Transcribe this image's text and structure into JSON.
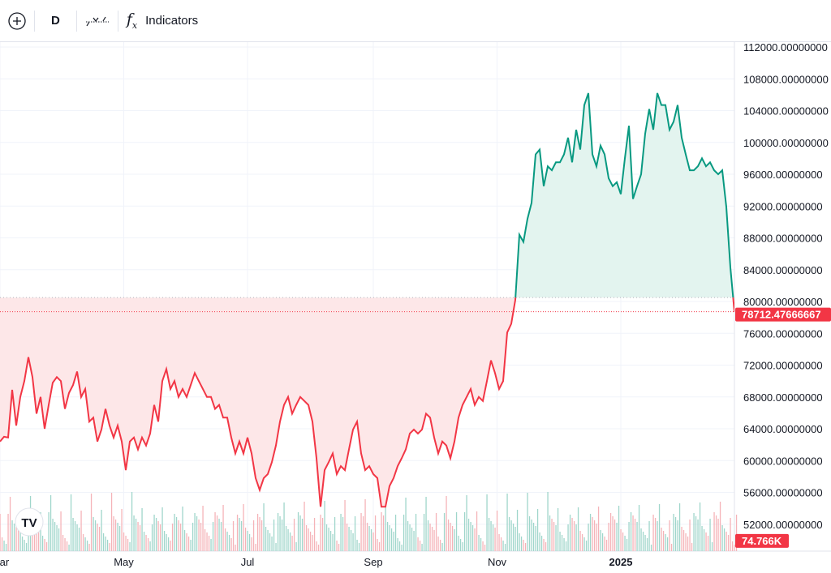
{
  "toolbar": {
    "add_icon": "plus-circle-icon",
    "interval": "D",
    "compare_icon": "chart-type-icon",
    "indicators_icon": "fx-icon",
    "indicators_label": "Indicators"
  },
  "colors": {
    "up": "#089981",
    "down": "#f23645",
    "up_fill": "#e3f4ef",
    "down_fill": "#fde7e8",
    "grid": "#f0f3fa"
  },
  "chart_data": {
    "type": "area",
    "title": "",
    "start_date": "2024-03-01",
    "step_days": 2,
    "baseline": 80500,
    "prices": [
      62400,
      63000,
      62900,
      68900,
      64400,
      68000,
      70000,
      73000,
      70500,
      65900,
      68000,
      64000,
      67000,
      69800,
      70500,
      70000,
      66500,
      68500,
      69500,
      71200,
      68000,
      69000,
      64900,
      65400,
      62400,
      63900,
      66500,
      64400,
      62900,
      64400,
      62400,
      58800,
      62400,
      62900,
      61400,
      62900,
      61900,
      63400,
      67000,
      64900,
      70000,
      71500,
      69000,
      70000,
      68000,
      69000,
      68000,
      69500,
      71000,
      70000,
      69000,
      68000,
      68000,
      66500,
      67000,
      65400,
      65400,
      62900,
      60900,
      62400,
      60900,
      62900,
      60900,
      57800,
      56300,
      57800,
      58300,
      59800,
      61900,
      64900,
      67000,
      68000,
      65900,
      67000,
      68000,
      67500,
      67000,
      64900,
      60300,
      54200,
      58800,
      59800,
      60900,
      58300,
      59300,
      58800,
      61400,
      63900,
      64900,
      60900,
      58800,
      59300,
      58300,
      57800,
      54200,
      54200,
      56800,
      57800,
      59300,
      60300,
      61400,
      63400,
      63900,
      63400,
      63900,
      65900,
      65400,
      62900,
      60900,
      62400,
      61900,
      60300,
      62400,
      65400,
      67000,
      68000,
      69000,
      67000,
      68000,
      67500,
      70000,
      72600,
      71000,
      69000,
      70000,
      76100,
      77200,
      80200,
      88400,
      87500,
      90400,
      92400,
      98500,
      99100,
      94500,
      97000,
      96500,
      97500,
      97500,
      98500,
      100600,
      97500,
      101600,
      99100,
      104700,
      106200,
      98500,
      97000,
      99600,
      98500,
      95500,
      94500,
      95000,
      93500,
      98000,
      102100,
      92900,
      94500,
      96000,
      101100,
      104200,
      101600,
      106200,
      104700,
      104700,
      101600,
      102600,
      104700,
      100600,
      98500,
      96500,
      96500,
      97000,
      98000,
      97000,
      97500,
      96500,
      96000,
      96500,
      91900,
      84300,
      78700
    ],
    "volume_badge": "74.766K",
    "last_price_label": "78712.47666667",
    "ylim": [
      50000,
      114000
    ],
    "y_ticks": [
      "112000.00000000",
      "108000.00000000",
      "104000.00000000",
      "100000.00000000",
      "96000.00000000",
      "92000.00000000",
      "88000.00000000",
      "84000.00000000",
      "80000.00000000",
      "76000.00000000",
      "72000.00000000",
      "68000.00000000",
      "64000.00000000",
      "60000.00000000",
      "56000.00000000",
      "52000.00000000"
    ],
    "x_ticks": [
      {
        "label": "Mar",
        "day": 0
      },
      {
        "label": "May",
        "day": 61
      },
      {
        "label": "Jul",
        "day": 122
      },
      {
        "label": "Sep",
        "day": 184
      },
      {
        "label": "Nov",
        "day": 245
      },
      {
        "label": "2025",
        "day": 306
      }
    ],
    "logo": "TV"
  }
}
